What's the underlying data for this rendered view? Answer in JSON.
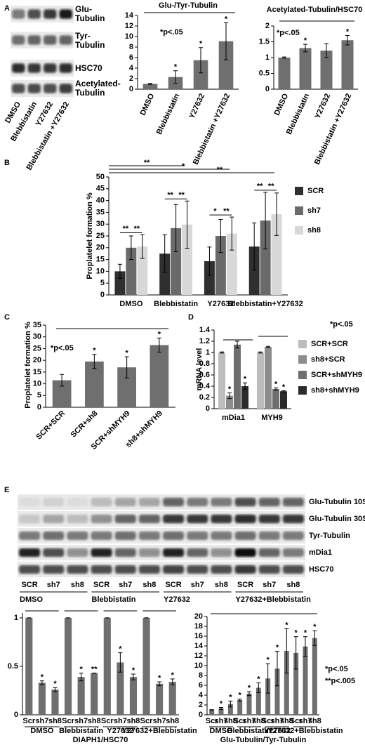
{
  "panels": {
    "labels": [
      "A",
      "B",
      "C",
      "D",
      "E"
    ]
  },
  "blots_a": {
    "rows": [
      "Glu-Tubulin",
      "Tyr-Tubulin",
      "HSC70",
      "Acetylated-Tubulin"
    ],
    "lanes": [
      "DMSO",
      "Blebbistatin",
      "Y27632",
      "Blebbistatin +Y27632"
    ]
  },
  "blots_e": {
    "rows": [
      "Glu-Tubulin 10S",
      "Glu-Tubulin 30S",
      "Tyr-Tubulin",
      "mDia1",
      "HSC70"
    ],
    "lanes": [
      "SCR",
      "sh7",
      "sh8",
      "SCR",
      "sh7",
      "sh8",
      "SCR",
      "sh7",
      "sh8",
      "SCR",
      "sh7",
      "sh8"
    ],
    "groups": [
      "DMSO",
      "Blebbistatin",
      "Y27632",
      "Y27632+Blebbistatin"
    ]
  },
  "chart_data": [
    {
      "type": "bar",
      "title": "Glu-/Tyr-Tubulin",
      "annotations": [
        "*p<.05"
      ],
      "categories": [
        "DMSO",
        "Blebbistatin",
        "Y27632",
        "Blebbistatin +Y27632"
      ],
      "values": [
        1,
        2.3,
        5.5,
        9.1
      ],
      "errors": [
        0.1,
        1.2,
        2.4,
        3.5
      ],
      "stars": [
        null,
        "*",
        "*",
        "*"
      ],
      "color": "#6f6f6f",
      "ylim": [
        0,
        14
      ],
      "yticks": [
        0,
        2,
        4,
        6,
        8,
        10,
        12,
        14
      ]
    },
    {
      "type": "bar",
      "title": "Acetylated-Tubulin/HSC70",
      "annotations": [
        "*p<.05"
      ],
      "categories": [
        "DMSO",
        "Blebbistatin",
        "Y27632",
        "Blebbistatin +Y27632"
      ],
      "values": [
        1,
        1.3,
        1.22,
        1.55
      ],
      "errors": [
        0.02,
        0.12,
        0.22,
        0.15
      ],
      "stars": [
        null,
        "*",
        null,
        "*"
      ],
      "color": "#6f6f6f",
      "ylim": [
        0,
        2
      ],
      "yticks": [
        0,
        0.5,
        1,
        1.5,
        2
      ]
    },
    {
      "type": "bar",
      "y_label": "Proplatelet formation %",
      "categories": [
        "DMSO",
        "Blebbistatin",
        "Y27632",
        "Blebbistatin+Y27632"
      ],
      "series": [
        {
          "name": "SCR",
          "color": "#2f2f2f",
          "values": [
            10,
            17.5,
            14.3,
            20.5
          ],
          "errors": [
            3,
            8,
            6,
            10
          ]
        },
        {
          "name": "sh7",
          "color": "#6a6a6a",
          "values": [
            20,
            28.3,
            25,
            31.5
          ],
          "errors": [
            5,
            10,
            7,
            12
          ]
        },
        {
          "name": "sh8",
          "color": "#d8d8d8",
          "values": [
            20.5,
            29.8,
            26,
            34.2
          ],
          "errors": [
            5,
            10,
            7,
            9
          ]
        }
      ],
      "significance": [
        "**",
        "**",
        "**",
        "**",
        "*",
        "**",
        "**",
        "**"
      ],
      "overall_significance": [
        "**",
        "*",
        "**"
      ],
      "ylim": [
        0,
        50
      ],
      "yticks": [
        0,
        5,
        10,
        15,
        20,
        25,
        30,
        35,
        40,
        45,
        50
      ]
    },
    {
      "type": "bar",
      "y_label": "Proplatelet formation %",
      "annotations": [
        "*p<.05"
      ],
      "categories": [
        "SCR+SCR",
        "SCR+sh8",
        "SCR+shMYH9",
        "sh8+shMYH9"
      ],
      "values": [
        11.5,
        19.5,
        17,
        26.5
      ],
      "errors": [
        2.5,
        3,
        4.5,
        3
      ],
      "stars": [
        null,
        "*",
        "*",
        "*"
      ],
      "color": "#6f6f6f",
      "ylim": [
        0,
        35
      ],
      "yticks": [
        0,
        5,
        10,
        15,
        20,
        25,
        30,
        35
      ]
    },
    {
      "type": "bar",
      "y_label": "mRNA level",
      "annotations": [
        "*p<.05"
      ],
      "categories": [
        "mDia1",
        "MYH9"
      ],
      "series": [
        {
          "name": "SCR+SCR",
          "color": "#bdbdbd",
          "values": [
            1,
            1
          ],
          "errors": [
            0.01,
            0.01
          ],
          "stars": [
            null,
            null
          ]
        },
        {
          "name": "sh8+SCR",
          "color": "#8c8c8c",
          "values": [
            0.23,
            1.1
          ],
          "errors": [
            0.05,
            0.01
          ],
          "stars": [
            "*",
            null
          ]
        },
        {
          "name": "SCR+shMYH9",
          "color": "#6e6e6e",
          "values": [
            1.14,
            0.35
          ],
          "errors": [
            0.06,
            0.02
          ],
          "stars": [
            null,
            "*"
          ]
        },
        {
          "name": "sh8+shMYH9",
          "color": "#2b2b2b",
          "values": [
            0.4,
            0.31
          ],
          "errors": [
            0.06,
            0.01
          ],
          "stars": [
            "*",
            "*"
          ]
        }
      ],
      "ylim": [
        0,
        1.4
      ],
      "yticks": [
        0,
        0.2,
        0.4,
        0.6,
        0.8,
        1,
        1.2,
        1.4
      ]
    },
    {
      "type": "bar",
      "x_label": "DIAPH1/HSC70",
      "categories": [
        "Scr",
        "sh7",
        "sh8",
        "Scr",
        "sh7",
        "sh8",
        "Scr",
        "sh7",
        "sh8",
        "Scr",
        "sh7",
        "sh8"
      ],
      "groups": [
        "DMSO",
        "Blebbistatin",
        "Y27632",
        "Y27632+Blebbistatin"
      ],
      "values": [
        1,
        0.33,
        0.26,
        1,
        0.39,
        0.43,
        1,
        0.54,
        0.39,
        1,
        0.32,
        0.34
      ],
      "errors": [
        0,
        0.02,
        0.02,
        0,
        0.04,
        0,
        0,
        0.1,
        0.03,
        0,
        0.02,
        0.03
      ],
      "stars": [
        null,
        "*",
        "*",
        null,
        "*",
        "**",
        null,
        "*",
        "*",
        null,
        "*",
        "*"
      ],
      "color": "#6f6f6f",
      "ylim": [
        0,
        1.05
      ],
      "yticks": [
        0,
        0.5,
        1
      ]
    },
    {
      "type": "bar",
      "x_label": "Glu-Tubulin/Tyr-Tubulin",
      "annotations": [
        "*p<.05",
        "**p<.005"
      ],
      "categories": [
        "Scr",
        "sh7",
        "sh8",
        "Scr",
        "sh7",
        "sh8",
        "Scr",
        "sh7",
        "sh8",
        "Scr",
        "sh7",
        "sh8"
      ],
      "groups": [
        "DMSO",
        "Blebbistatin",
        "Y27632",
        "Y27632+Blebbistatin"
      ],
      "values": [
        1,
        1.3,
        2.2,
        3,
        4.3,
        5.5,
        7.4,
        9.4,
        13,
        12.6,
        13.9,
        15.6
      ],
      "errors": [
        0.05,
        0.2,
        0.6,
        0.2,
        0.4,
        1,
        3,
        3.5,
        4.5,
        3.3,
        2,
        1.5
      ],
      "stars": [
        null,
        "*",
        "*",
        "*",
        "*",
        "*",
        "*",
        "*",
        "*",
        "*",
        "*",
        "*"
      ],
      "color": "#6f6f6f",
      "ylim": [
        0,
        20
      ],
      "yticks": [
        0,
        2,
        4,
        6,
        8,
        10,
        12,
        14,
        16,
        18,
        20
      ]
    }
  ]
}
